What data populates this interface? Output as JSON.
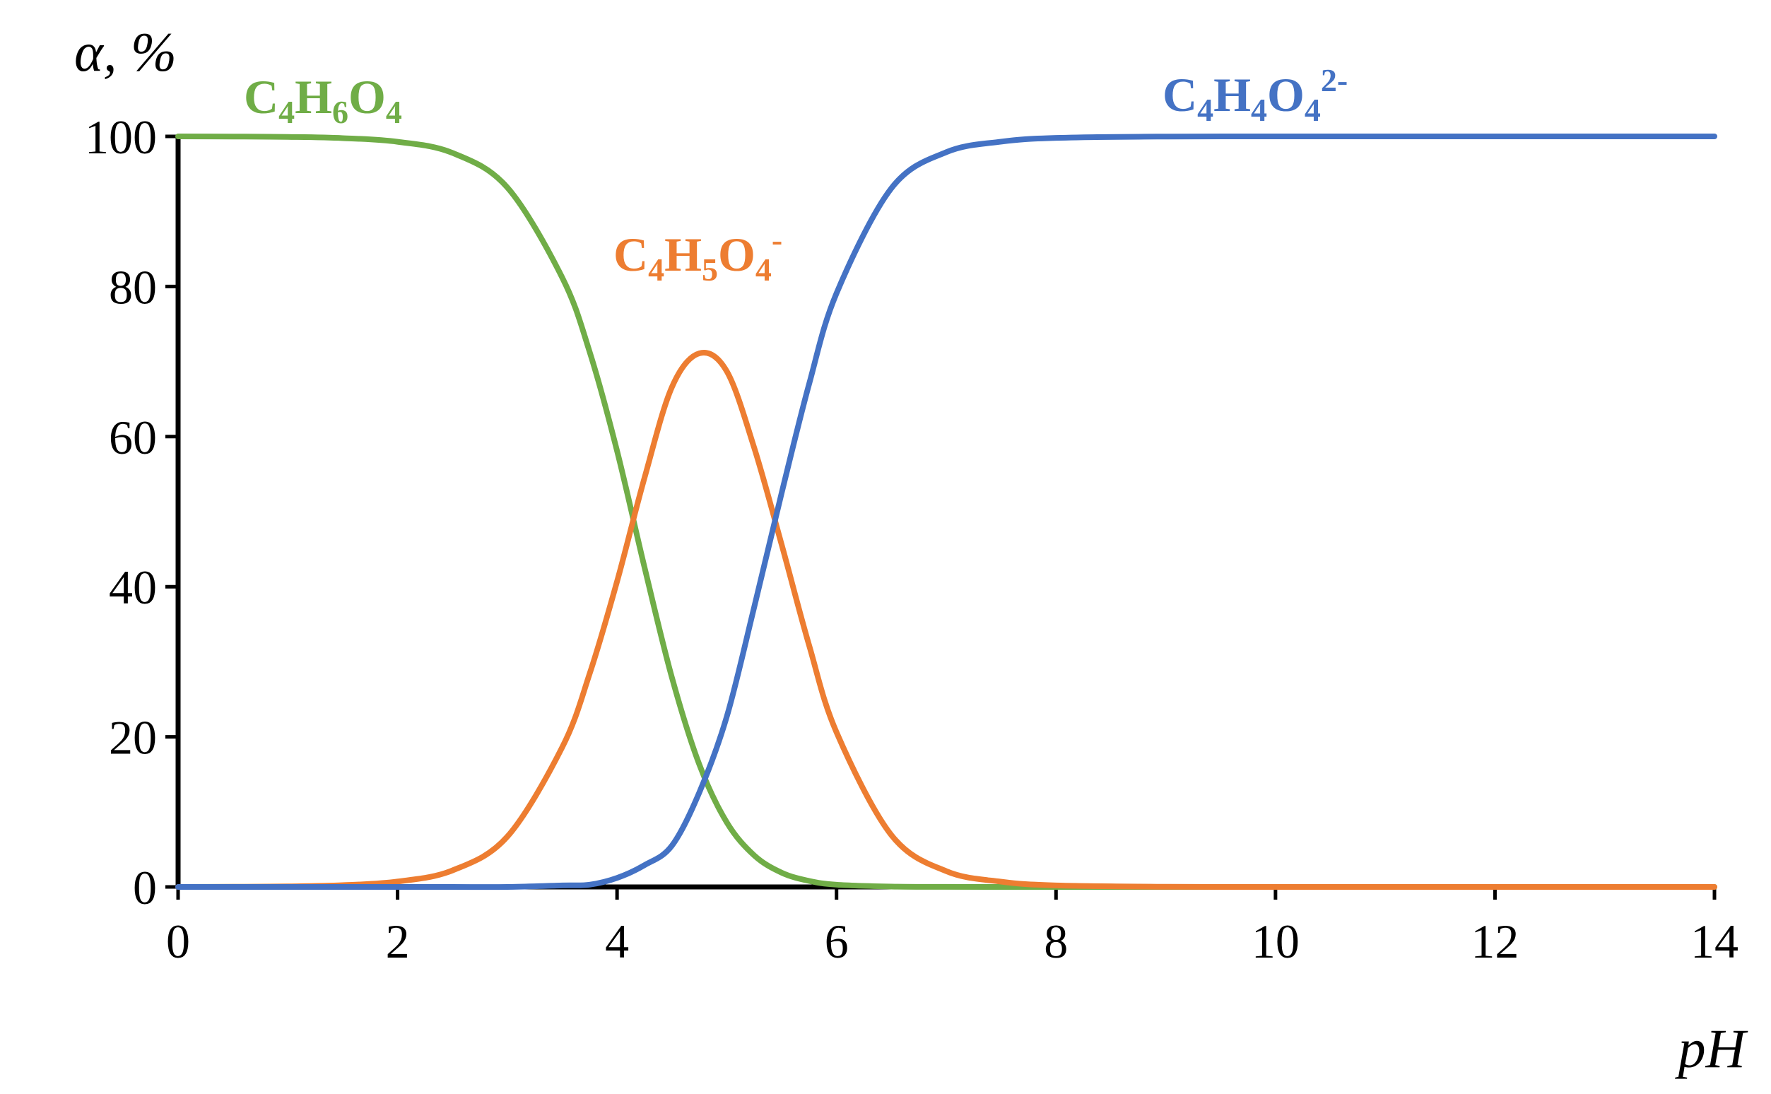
{
  "chart_data": {
    "type": "line",
    "ylabel": "α, %",
    "xlabel": "pH",
    "xlim": [
      0,
      14
    ],
    "ylim": [
      0,
      100
    ],
    "xticks": [
      "0",
      "2",
      "4",
      "6",
      "8",
      "10",
      "12",
      "14"
    ],
    "yticks": [
      "0",
      "20",
      "40",
      "60",
      "80",
      "100"
    ],
    "grid": false,
    "x": [
      0,
      0.5,
      1,
      1.5,
      2,
      2.5,
      3,
      3.5,
      3.75,
      4,
      4.25,
      4.5,
      4.75,
      5,
      5.25,
      5.5,
      5.75,
      6,
      6.5,
      7,
      7.5,
      8,
      9,
      10,
      11,
      12,
      13,
      14
    ],
    "series": [
      {
        "color": "#70AD47",
        "label": {
          "base": "C",
          "n1": "4",
          "h": "H",
          "n2": "6",
          "o": "O",
          "n3": "4",
          "charge": ""
        },
        "values": [
          100,
          99.98,
          99.93,
          99.77,
          99.28,
          97.8,
          93.2,
          81.2,
          71.3,
          58.1,
          42.6,
          27.9,
          16.3,
          8.6,
          4.2,
          1.9,
          0.8,
          0.3,
          0.05,
          0.01,
          0,
          0,
          0,
          0,
          0,
          0,
          0,
          0
        ]
      },
      {
        "color": "#ED7D31",
        "label": {
          "base": "C",
          "n1": "4",
          "h": "H",
          "n2": "5",
          "o": "O",
          "n3": "4",
          "charge": "-"
        },
        "values": [
          0,
          0.02,
          0.07,
          0.23,
          0.72,
          2.2,
          6.7,
          18.6,
          28.4,
          40.7,
          54.5,
          66.6,
          71.1,
          68.7,
          58.5,
          45.6,
          32.2,
          20.6,
          6.9,
          2.1,
          0.7,
          0.2,
          0.02,
          0,
          0,
          0,
          0,
          0
        ]
      },
      {
        "color": "#4472C4",
        "label": {
          "base": "C",
          "n1": "4",
          "h": "H",
          "n2": "4",
          "o": "O",
          "n3": "4",
          "charge": "2-"
        },
        "values": [
          0,
          0,
          0,
          0,
          0,
          0,
          0,
          0.2,
          0.3,
          1.2,
          2.9,
          5.5,
          12.6,
          22.7,
          37.3,
          52.5,
          67,
          79.1,
          93.1,
          97.9,
          99.3,
          99.8,
          99.98,
          100,
          100,
          100,
          100,
          100
        ]
      }
    ]
  }
}
